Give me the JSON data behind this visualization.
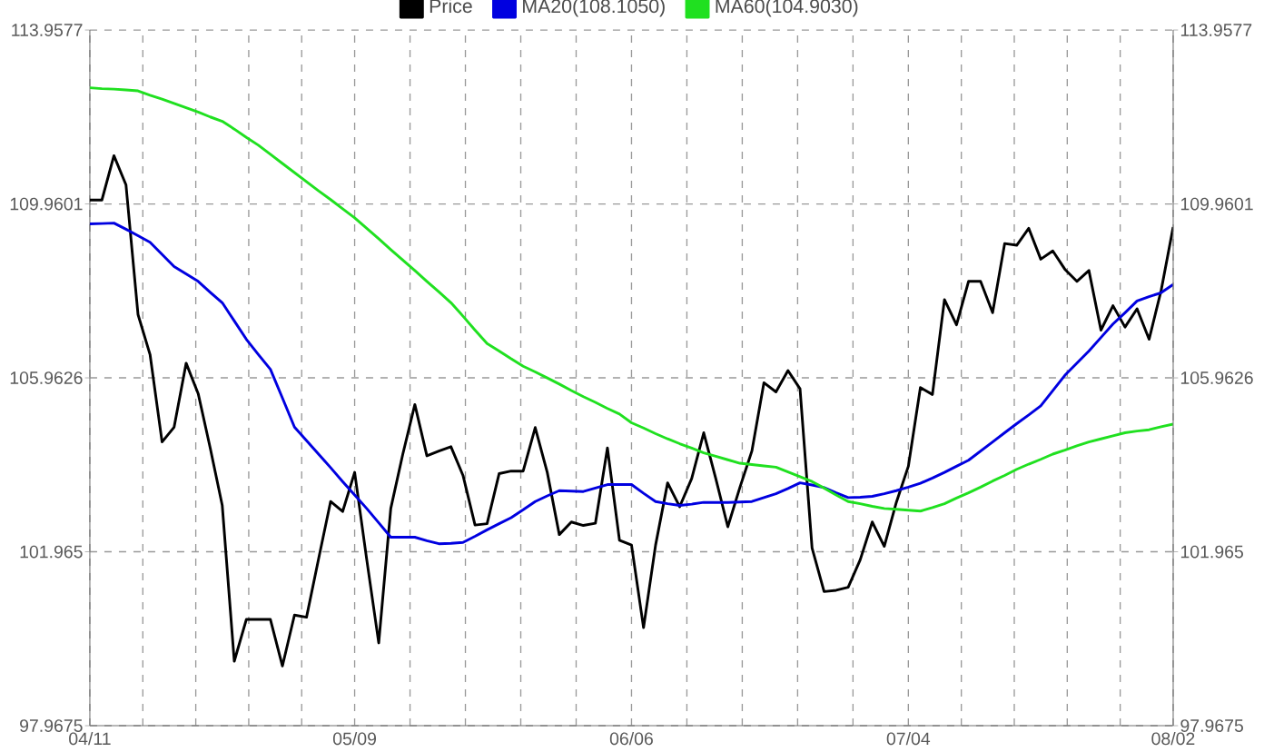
{
  "chart_data": {
    "type": "line",
    "categories": [
      "04/11",
      null,
      null,
      null,
      null,
      null,
      null,
      null,
      null,
      null,
      null,
      null,
      null,
      null,
      null,
      null,
      null,
      null,
      null,
      null,
      null,
      null,
      "05/09",
      null,
      null,
      null,
      null,
      null,
      null,
      null,
      null,
      null,
      null,
      null,
      null,
      null,
      null,
      null,
      null,
      null,
      null,
      null,
      null,
      null,
      null,
      "06/06",
      null,
      null,
      null,
      null,
      null,
      null,
      null,
      null,
      null,
      null,
      null,
      null,
      null,
      null,
      null,
      null,
      null,
      null,
      null,
      null,
      null,
      null,
      "07/04",
      null,
      null,
      null,
      null,
      null,
      null,
      null,
      null,
      null,
      null,
      null,
      null,
      null,
      null,
      null,
      null,
      null,
      null,
      null,
      null,
      null,
      "08/02"
    ],
    "ylim": [
      97.9675,
      113.9577
    ],
    "yticks": [
      97.9675,
      101.965,
      105.9626,
      109.9601,
      113.9577
    ],
    "y2lim": [
      97.9675,
      113.9577
    ],
    "y2ticks": [
      97.9675,
      101.965,
      105.9626,
      109.9601,
      113.9577
    ],
    "grid": true,
    "legend": "top",
    "marker": "none",
    "line_style": "solid",
    "series": [
      {
        "name": "Price",
        "color": "#000000",
        "values": [
          110.05,
          110.05,
          111.07,
          110.4,
          107.42,
          106.5,
          104.49,
          104.83,
          106.3,
          105.6,
          104.35,
          103.03,
          99.45,
          100.41,
          100.41,
          100.41,
          99.34,
          100.51,
          100.46,
          101.8,
          103.12,
          102.89,
          103.79,
          101.79,
          99.87,
          102.96,
          104.21,
          105.35,
          104.17,
          104.28,
          104.38,
          103.72,
          102.58,
          102.61,
          103.76,
          103.82,
          103.82,
          104.82,
          103.79,
          102.36,
          102.65,
          102.57,
          102.62,
          104.35,
          102.23,
          102.12,
          100.22,
          102.12,
          103.55,
          103.0,
          103.65,
          104.7,
          103.65,
          102.54,
          103.44,
          104.28,
          105.85,
          105.64,
          106.13,
          105.71,
          102.05,
          101.05,
          101.08,
          101.15,
          101.78,
          102.65,
          102.09,
          103.1,
          103.93,
          105.74,
          105.58,
          107.76,
          107.18,
          108.18,
          108.18,
          107.46,
          109.05,
          109.01,
          109.4,
          108.69,
          108.88,
          108.46,
          108.18,
          108.43,
          107.06,
          107.62,
          107.13,
          107.55,
          106.85,
          107.97,
          109.43
        ]
      },
      {
        "name": "MA20(108.1050)",
        "color": "#0000e0",
        "values": [
          109.5,
          109.51,
          109.52,
          109.38,
          109.23,
          109.08,
          108.8,
          108.52,
          108.35,
          108.18,
          107.93,
          107.69,
          107.27,
          106.85,
          106.5,
          106.16,
          105.5,
          104.83,
          104.52,
          104.21,
          103.9,
          103.58,
          103.27,
          102.96,
          102.63,
          102.3,
          102.3,
          102.3,
          102.22,
          102.15,
          102.16,
          102.18,
          102.32,
          102.47,
          102.61,
          102.75,
          102.93,
          103.12,
          103.25,
          103.37,
          103.36,
          103.35,
          103.43,
          103.51,
          103.51,
          103.51,
          103.31,
          103.12,
          103.07,
          103.03,
          103.06,
          103.1,
          103.1,
          103.1,
          103.11,
          103.12,
          103.21,
          103.3,
          103.42,
          103.55,
          103.5,
          103.44,
          103.32,
          103.21,
          103.22,
          103.24,
          103.3,
          103.37,
          103.45,
          103.54,
          103.66,
          103.79,
          103.93,
          104.07,
          104.28,
          104.49,
          104.7,
          104.91,
          105.11,
          105.32,
          105.67,
          106.02,
          106.3,
          106.58,
          106.89,
          107.2,
          107.46,
          107.73,
          107.83,
          107.92,
          108.11
        ]
      },
      {
        "name": "MA60(104.9030)",
        "color": "#20e020",
        "values": [
          112.63,
          112.61,
          112.6,
          112.58,
          112.56,
          112.46,
          112.37,
          112.27,
          112.17,
          112.07,
          111.96,
          111.86,
          111.68,
          111.49,
          111.31,
          111.1,
          110.89,
          110.68,
          110.47,
          110.26,
          110.06,
          109.85,
          109.64,
          109.4,
          109.16,
          108.91,
          108.67,
          108.43,
          108.18,
          107.94,
          107.69,
          107.38,
          107.06,
          106.75,
          106.58,
          106.4,
          106.23,
          106.1,
          105.96,
          105.82,
          105.67,
          105.53,
          105.4,
          105.26,
          105.13,
          104.93,
          104.81,
          104.68,
          104.56,
          104.45,
          104.35,
          104.24,
          104.16,
          104.08,
          104.0,
          103.97,
          103.94,
          103.91,
          103.8,
          103.69,
          103.58,
          103.43,
          103.27,
          103.12,
          103.07,
          103.01,
          102.96,
          102.94,
          102.92,
          102.9,
          102.98,
          103.07,
          103.2,
          103.32,
          103.45,
          103.59,
          103.72,
          103.86,
          103.98,
          104.09,
          104.21,
          104.3,
          104.4,
          104.49,
          104.56,
          104.63,
          104.7,
          104.74,
          104.77,
          104.84,
          104.9
        ]
      }
    ]
  }
}
